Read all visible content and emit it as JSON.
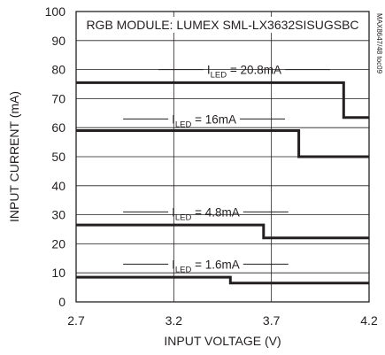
{
  "chart_data": {
    "type": "line",
    "title": "RGB MODULE: LUMEX SML-LX3632SISUGSBC",
    "xlabel": "INPUT VOLTAGE (V)",
    "ylabel": "INPUT CURRENT (mA)",
    "part_code": "MAX8647/48 toc09",
    "xlim": [
      2.7,
      4.2
    ],
    "ylim": [
      0,
      100
    ],
    "x_ticks": [
      "2.7",
      "3.2",
      "3.7",
      "4.2"
    ],
    "x_tick_values": [
      2.7,
      3.2,
      3.7,
      4.2
    ],
    "y_ticks": [
      "0",
      "10",
      "20",
      "30",
      "40",
      "50",
      "60",
      "70",
      "80",
      "90",
      "100"
    ],
    "y_tick_values": [
      0,
      10,
      20,
      30,
      40,
      50,
      60,
      70,
      80,
      90,
      100
    ],
    "grid": true,
    "annotation_prefix": "I",
    "annotation_subscript": "LED",
    "series": [
      {
        "label_value": " = 20.8mA",
        "label_x": 3.37,
        "label_y": 80,
        "x": [
          2.7,
          4.07,
          4.07,
          4.2
        ],
        "y": [
          75.5,
          75.5,
          63.5,
          63.5
        ]
      },
      {
        "label_value": " = 16mA",
        "label_x": 3.19,
        "label_y": 63,
        "x": [
          2.7,
          3.84,
          3.84,
          4.2
        ],
        "y": [
          59,
          59,
          50,
          50
        ]
      },
      {
        "label_value": " = 4.8mA",
        "label_x": 3.19,
        "label_y": 31,
        "x": [
          2.7,
          3.66,
          3.66,
          4.2
        ],
        "y": [
          26.5,
          26.5,
          22,
          22
        ]
      },
      {
        "label_value": " = 1.6mA",
        "label_x": 3.19,
        "label_y": 13,
        "x": [
          2.7,
          3.49,
          3.49,
          4.2
        ],
        "y": [
          8.5,
          8.5,
          6.5,
          6.5
        ]
      }
    ]
  }
}
